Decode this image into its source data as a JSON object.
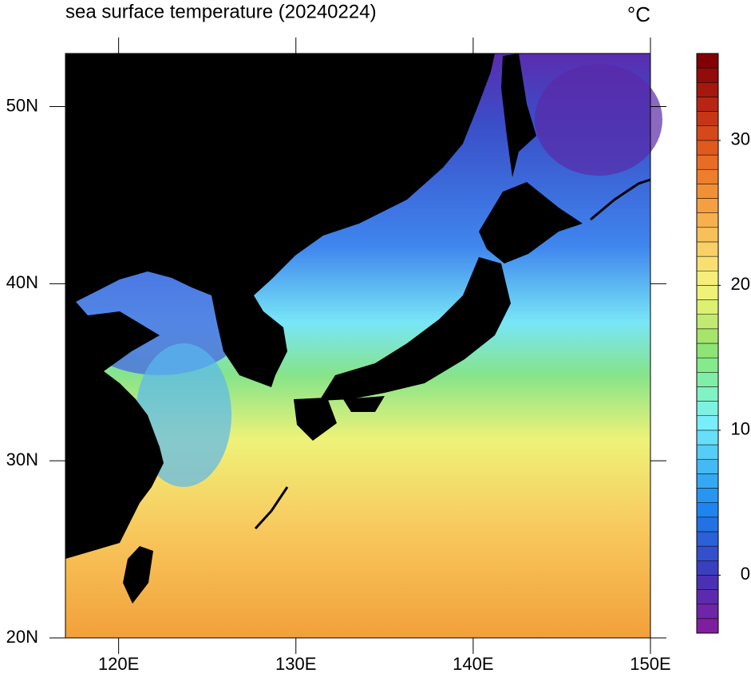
{
  "chart_data": {
    "type": "map",
    "title": "sea surface temperature (20240224)",
    "unit": "°C",
    "xlim": [
      117,
      150
    ],
    "ylim": [
      20,
      53
    ],
    "xticks": [
      {
        "value": 120,
        "label": "120E"
      },
      {
        "value": 130,
        "label": "130E"
      },
      {
        "value": 140,
        "label": "140E"
      },
      {
        "value": 150,
        "label": "150E"
      }
    ],
    "yticks": [
      {
        "value": 20,
        "label": "20N"
      },
      {
        "value": 30,
        "label": "30N"
      },
      {
        "value": 40,
        "label": "40N"
      },
      {
        "value": 50,
        "label": "50N"
      }
    ],
    "colorbar": {
      "lim": [
        -4,
        36
      ],
      "ticks": [
        0,
        10,
        20,
        30
      ],
      "colors": [
        "#7f1fa0",
        "#6e25a6",
        "#5c2bad",
        "#4a31b4",
        "#3a3fc0",
        "#3250cc",
        "#2a60d8",
        "#2272e4",
        "#1e84ee",
        "#2896f0",
        "#34a8f2",
        "#44baf4",
        "#56ccf6",
        "#68def8",
        "#78eefa",
        "#7ef2e0",
        "#80f2c4",
        "#80eea6",
        "#84ea8a",
        "#8ee474",
        "#a6e46c",
        "#c2ea6e",
        "#dcf072",
        "#eef278",
        "#f6ee7a",
        "#f8e070",
        "#f8d066",
        "#f8c05a",
        "#f6b04e",
        "#f4a042",
        "#f29036",
        "#ee7e2c",
        "#e86c24",
        "#e05a1e",
        "#d4481a",
        "#c63616",
        "#b62612",
        "#a4180e",
        "#920c0a",
        "#800006"
      ]
    }
  }
}
